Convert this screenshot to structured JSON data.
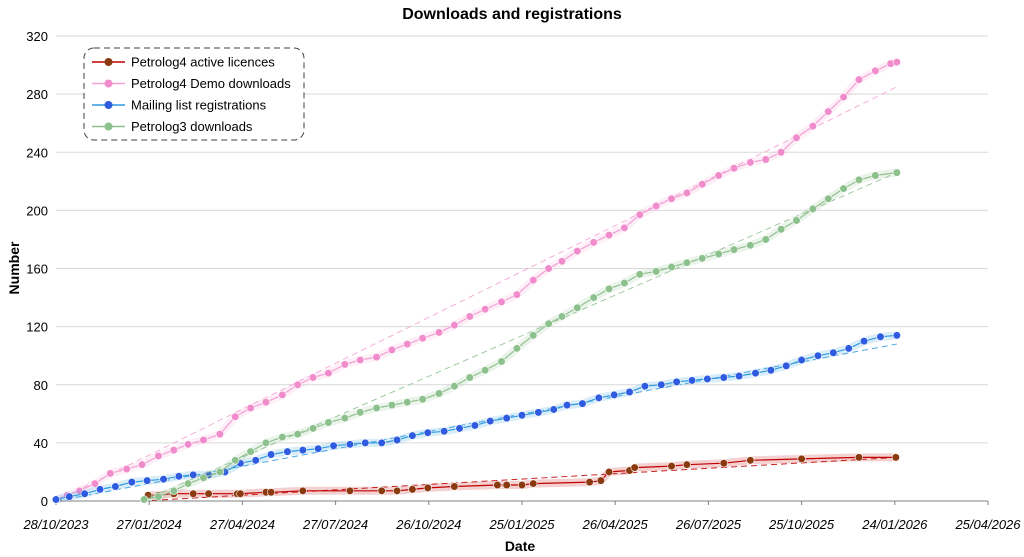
{
  "chart_data": {
    "type": "line",
    "title": "Downloads and registrations",
    "xlabel": "Date",
    "ylabel": "Number",
    "ylim": [
      0,
      320
    ],
    "yticks": [
      0,
      40,
      80,
      120,
      160,
      200,
      240,
      280,
      320
    ],
    "xlim": [
      "2023-10-28",
      "2026-04-25"
    ],
    "xticks": [
      "28/10/2023",
      "27/01/2024",
      "27/04/2024",
      "27/07/2024",
      "26/10/2024",
      "25/01/2025",
      "26/04/2025",
      "26/07/2025",
      "25/10/2025",
      "24/01/2026",
      "25/04/2026"
    ],
    "grid": "horizontal",
    "legend_position": "top-left",
    "series": [
      {
        "name": "Petrolog4 active licences",
        "color": "#c00000",
        "marker_color": "#8b3a0f",
        "trend": [
          [
            "2024-01-20",
            0
          ],
          [
            "2026-01-26",
            30
          ]
        ],
        "points": [
          [
            "2024-01-26",
            4
          ],
          [
            "2024-02-05",
            4
          ],
          [
            "2024-02-20",
            5
          ],
          [
            "2024-03-10",
            5
          ],
          [
            "2024-03-25",
            5
          ],
          [
            "2024-04-22",
            5
          ],
          [
            "2024-04-25",
            5
          ],
          [
            "2024-05-20",
            6
          ],
          [
            "2024-05-25",
            6
          ],
          [
            "2024-06-25",
            7
          ],
          [
            "2024-08-10",
            7
          ],
          [
            "2024-09-10",
            7
          ],
          [
            "2024-09-25",
            7
          ],
          [
            "2024-10-10",
            8
          ],
          [
            "2024-10-25",
            9
          ],
          [
            "2024-11-20",
            10
          ],
          [
            "2025-01-01",
            11
          ],
          [
            "2025-01-10",
            11
          ],
          [
            "2025-01-25",
            11
          ],
          [
            "2025-02-05",
            12
          ],
          [
            "2025-04-01",
            13
          ],
          [
            "2025-04-12",
            14
          ],
          [
            "2025-04-20",
            20
          ],
          [
            "2025-05-10",
            21
          ],
          [
            "2025-05-15",
            23
          ],
          [
            "2025-06-20",
            24
          ],
          [
            "2025-07-05",
            25
          ],
          [
            "2025-08-10",
            26
          ],
          [
            "2025-09-05",
            28
          ],
          [
            "2025-10-25",
            29
          ],
          [
            "2025-12-20",
            30
          ],
          [
            "2026-01-25",
            30
          ]
        ]
      },
      {
        "name": "Petrolog4 Demo downloads",
        "color": "#f4a0d4",
        "marker_color": "#f08ccc",
        "trend": [
          [
            "2023-10-28",
            0
          ],
          [
            "2026-01-26",
            285
          ]
        ],
        "points": [
          [
            "2023-10-28",
            1
          ],
          [
            "2023-11-08",
            4
          ],
          [
            "2023-11-20",
            7
          ],
          [
            "2023-12-05",
            12
          ],
          [
            "2023-12-20",
            19
          ],
          [
            "2024-01-05",
            22
          ],
          [
            "2024-01-20",
            25
          ],
          [
            "2024-02-05",
            31
          ],
          [
            "2024-02-20",
            35
          ],
          [
            "2024-03-05",
            39
          ],
          [
            "2024-03-20",
            42
          ],
          [
            "2024-04-05",
            46
          ],
          [
            "2024-04-20",
            58
          ],
          [
            "2024-05-05",
            64
          ],
          [
            "2024-05-20",
            68
          ],
          [
            "2024-06-05",
            73
          ],
          [
            "2024-06-20",
            80
          ],
          [
            "2024-07-05",
            85
          ],
          [
            "2024-07-20",
            88
          ],
          [
            "2024-08-05",
            94
          ],
          [
            "2024-08-20",
            97
          ],
          [
            "2024-09-05",
            99
          ],
          [
            "2024-09-20",
            104
          ],
          [
            "2024-10-05",
            108
          ],
          [
            "2024-10-20",
            112
          ],
          [
            "2024-11-05",
            116
          ],
          [
            "2024-11-20",
            121
          ],
          [
            "2024-12-05",
            127
          ],
          [
            "2024-12-20",
            132
          ],
          [
            "2025-01-05",
            137
          ],
          [
            "2025-01-20",
            142
          ],
          [
            "2025-02-05",
            152
          ],
          [
            "2025-02-20",
            160
          ],
          [
            "2025-03-05",
            165
          ],
          [
            "2025-03-20",
            172
          ],
          [
            "2025-04-05",
            178
          ],
          [
            "2025-04-20",
            183
          ],
          [
            "2025-05-05",
            188
          ],
          [
            "2025-05-20",
            197
          ],
          [
            "2025-06-05",
            203
          ],
          [
            "2025-06-20",
            208
          ],
          [
            "2025-07-05",
            212
          ],
          [
            "2025-07-20",
            218
          ],
          [
            "2025-08-05",
            224
          ],
          [
            "2025-08-20",
            229
          ],
          [
            "2025-09-05",
            233
          ],
          [
            "2025-09-20",
            235
          ],
          [
            "2025-10-05",
            240
          ],
          [
            "2025-10-20",
            250
          ],
          [
            "2025-11-05",
            258
          ],
          [
            "2025-11-20",
            268
          ],
          [
            "2025-12-05",
            278
          ],
          [
            "2025-12-20",
            290
          ],
          [
            "2026-01-05",
            296
          ],
          [
            "2026-01-20",
            301
          ],
          [
            "2026-01-26",
            302
          ]
        ]
      },
      {
        "name": "Mailing list registrations",
        "color": "#2f9be0",
        "marker_color": "#2f5be0",
        "trend": [
          [
            "2023-10-28",
            0
          ],
          [
            "2026-01-26",
            108
          ]
        ],
        "points": [
          [
            "2023-10-28",
            1
          ],
          [
            "2023-11-10",
            3
          ],
          [
            "2023-11-25",
            5
          ],
          [
            "2023-12-10",
            8
          ],
          [
            "2023-12-25",
            10
          ],
          [
            "2024-01-10",
            13
          ],
          [
            "2024-01-25",
            14
          ],
          [
            "2024-02-10",
            15
          ],
          [
            "2024-02-25",
            17
          ],
          [
            "2024-03-10",
            18
          ],
          [
            "2024-03-25",
            18
          ],
          [
            "2024-04-10",
            20
          ],
          [
            "2024-04-25",
            26
          ],
          [
            "2024-05-10",
            28
          ],
          [
            "2024-05-25",
            32
          ],
          [
            "2024-06-10",
            34
          ],
          [
            "2024-06-25",
            35
          ],
          [
            "2024-07-10",
            36
          ],
          [
            "2024-07-25",
            38
          ],
          [
            "2024-08-10",
            39
          ],
          [
            "2024-08-25",
            40
          ],
          [
            "2024-09-10",
            40
          ],
          [
            "2024-09-25",
            42
          ],
          [
            "2024-10-10",
            45
          ],
          [
            "2024-10-25",
            47
          ],
          [
            "2024-11-10",
            48
          ],
          [
            "2024-11-25",
            50
          ],
          [
            "2024-12-10",
            52
          ],
          [
            "2024-12-25",
            55
          ],
          [
            "2025-01-10",
            57
          ],
          [
            "2025-01-25",
            59
          ],
          [
            "2025-02-10",
            61
          ],
          [
            "2025-02-25",
            63
          ],
          [
            "2025-03-10",
            66
          ],
          [
            "2025-03-25",
            67
          ],
          [
            "2025-04-10",
            71
          ],
          [
            "2025-04-25",
            73
          ],
          [
            "2025-05-10",
            75
          ],
          [
            "2025-05-25",
            79
          ],
          [
            "2025-06-10",
            80
          ],
          [
            "2025-06-25",
            82
          ],
          [
            "2025-07-10",
            83
          ],
          [
            "2025-07-25",
            84
          ],
          [
            "2025-08-10",
            85
          ],
          [
            "2025-08-25",
            86
          ],
          [
            "2025-09-10",
            88
          ],
          [
            "2025-09-25",
            90
          ],
          [
            "2025-10-10",
            93
          ],
          [
            "2025-10-25",
            97
          ],
          [
            "2025-11-10",
            100
          ],
          [
            "2025-11-25",
            102
          ],
          [
            "2025-12-10",
            105
          ],
          [
            "2025-12-25",
            110
          ],
          [
            "2026-01-10",
            113
          ],
          [
            "2026-01-26",
            114
          ]
        ]
      },
      {
        "name": "Petrolog3 downloads",
        "color": "#90c090",
        "marker_color": "#8cc08c",
        "trend": [
          [
            "2024-01-20",
            0
          ],
          [
            "2026-01-26",
            226
          ]
        ],
        "points": [
          [
            "2024-01-22",
            1
          ],
          [
            "2024-02-05",
            3
          ],
          [
            "2024-02-20",
            7
          ],
          [
            "2024-03-05",
            12
          ],
          [
            "2024-03-20",
            16
          ],
          [
            "2024-04-05",
            20
          ],
          [
            "2024-04-20",
            28
          ],
          [
            "2024-05-05",
            34
          ],
          [
            "2024-05-20",
            40
          ],
          [
            "2024-06-05",
            44
          ],
          [
            "2024-06-20",
            46
          ],
          [
            "2024-07-05",
            50
          ],
          [
            "2024-07-20",
            54
          ],
          [
            "2024-08-05",
            57
          ],
          [
            "2024-08-20",
            61
          ],
          [
            "2024-09-05",
            64
          ],
          [
            "2024-09-20",
            66
          ],
          [
            "2024-10-05",
            68
          ],
          [
            "2024-10-20",
            70
          ],
          [
            "2024-11-05",
            74
          ],
          [
            "2024-11-20",
            79
          ],
          [
            "2024-12-05",
            85
          ],
          [
            "2024-12-20",
            90
          ],
          [
            "2025-01-05",
            96
          ],
          [
            "2025-01-20",
            105
          ],
          [
            "2025-02-05",
            114
          ],
          [
            "2025-02-20",
            122
          ],
          [
            "2025-03-05",
            127
          ],
          [
            "2025-03-20",
            133
          ],
          [
            "2025-04-05",
            140
          ],
          [
            "2025-04-20",
            146
          ],
          [
            "2025-05-05",
            150
          ],
          [
            "2025-05-20",
            156
          ],
          [
            "2025-06-05",
            158
          ],
          [
            "2025-06-20",
            161
          ],
          [
            "2025-07-05",
            164
          ],
          [
            "2025-07-20",
            167
          ],
          [
            "2025-08-05",
            170
          ],
          [
            "2025-08-20",
            173
          ],
          [
            "2025-09-05",
            176
          ],
          [
            "2025-09-20",
            180
          ],
          [
            "2025-10-05",
            187
          ],
          [
            "2025-10-20",
            193
          ],
          [
            "2025-11-05",
            201
          ],
          [
            "2025-11-20",
            208
          ],
          [
            "2025-12-05",
            215
          ],
          [
            "2025-12-20",
            221
          ],
          [
            "2026-01-05",
            224
          ],
          [
            "2026-01-26",
            226
          ]
        ]
      }
    ]
  }
}
